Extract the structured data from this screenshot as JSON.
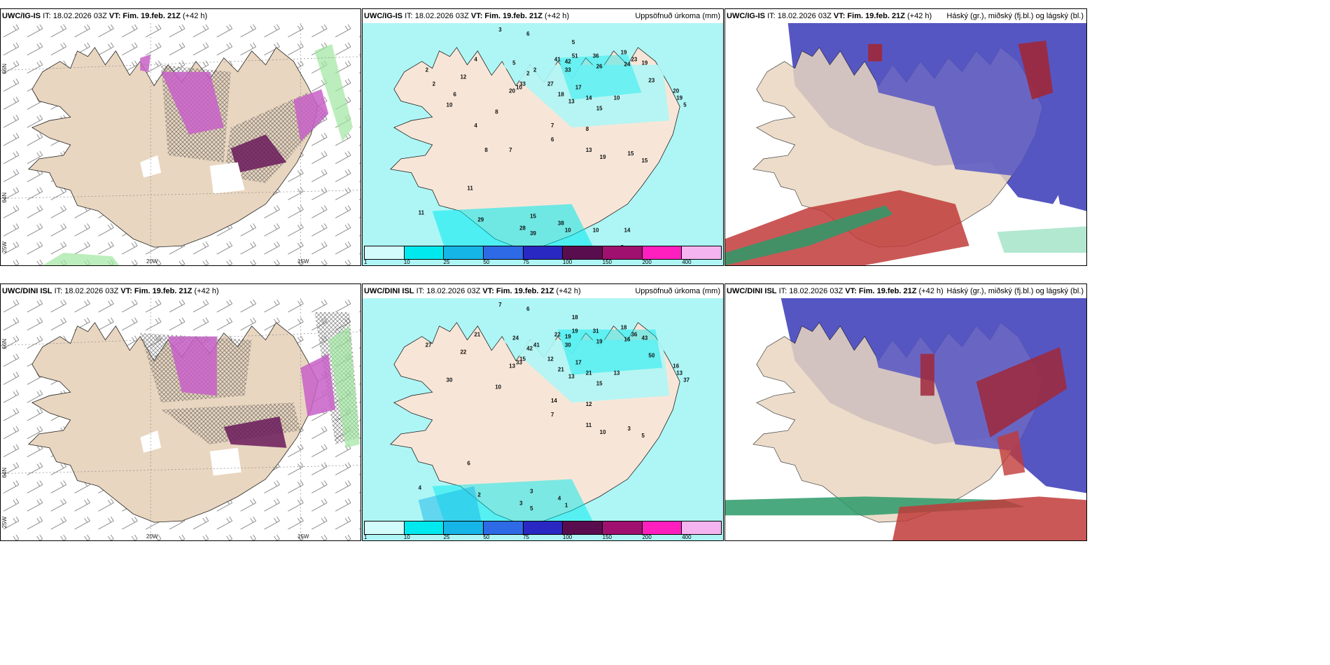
{
  "rows": [
    {
      "wind": {
        "model": "UWC/IG-IS",
        "it": "IT: 18.02.2026 03Z",
        "vt_label": "VT:",
        "vt": "Fim. 19.feb. 21Z",
        "lead": "(+42 h)"
      },
      "precip": {
        "model": "UWC/IG-IS",
        "it": "IT: 18.02.2026 03Z",
        "vt_label": "VT:",
        "vt": "Fim. 19.feb. 21Z",
        "lead": "(+42 h)",
        "right": "Uppsöfnuð úrkoma (mm)"
      },
      "cloud": {
        "model": "UWC/IG-IS",
        "it": "IT: 18.02.2026 03Z",
        "vt_label": "VT:",
        "vt": "Fim. 19.feb. 21Z",
        "lead": "(+42 h)",
        "right": "Háský (gr.), miðský (fj.bl.) og lágský (bl.)"
      },
      "precip_values": [
        "3",
        "6",
        "5",
        "4",
        "5",
        "12",
        "10",
        "2",
        "2",
        "2",
        "41",
        "42",
        "33",
        "51",
        "36",
        "26",
        "19",
        "24",
        "23",
        "19",
        "33",
        "20",
        "27",
        "18",
        "13",
        "17",
        "15",
        "14",
        "10",
        "23",
        "20",
        "19",
        "5",
        "10",
        "8",
        "7",
        "8",
        "13",
        "19",
        "15",
        "15",
        "6",
        "11",
        "11",
        "29",
        "15",
        "28",
        "39",
        "38",
        "10",
        "10",
        "14",
        "8",
        "6",
        "2",
        "6",
        "4",
        "8",
        "7"
      ]
    },
    {
      "wind": {
        "model": "UWC/DINI ISL",
        "it": "IT: 18.02.2026 03Z",
        "vt_label": "VT:",
        "vt": "Fim. 19.feb. 21Z",
        "lead": "(+42 h)"
      },
      "precip": {
        "model": "UWC/DINI ISL",
        "it": "IT: 18.02.2026 03Z",
        "vt_label": "VT:",
        "vt": "Fim. 19.feb. 21Z",
        "lead": "(+42 h)",
        "right": "Uppsöfnuð úrkoma (mm)"
      },
      "cloud": {
        "model": "UWC/DINI ISL",
        "it": "IT: 18.02.2026 03Z",
        "vt_label": "VT:",
        "vt": "Fim. 19.feb. 21Z",
        "lead": "(+42 h)",
        "right": "Háský (gr.), miðský (fj.bl.) og lágský (bl.)"
      },
      "precip_values": [
        "7",
        "6",
        "18",
        "21",
        "24",
        "22",
        "33",
        "42",
        "41",
        "27",
        "22",
        "19",
        "30",
        "19",
        "31",
        "19",
        "18",
        "16",
        "36",
        "43",
        "15",
        "13",
        "12",
        "21",
        "13",
        "17",
        "15",
        "21",
        "13",
        "50",
        "16",
        "13",
        "37",
        "30",
        "10",
        "14",
        "12",
        "11",
        "10",
        "3",
        "5",
        "7",
        "6",
        "4",
        "2",
        "3",
        "3",
        "5",
        "4",
        "1"
      ]
    }
  ],
  "axes": {
    "lat66": "66N",
    "lat64": "64N",
    "lon25": "25W",
    "lon20": "20W",
    "lon15": "15W"
  },
  "colorbar": {
    "ticks": [
      "1",
      "10",
      "25",
      "50",
      "75",
      "100",
      "150",
      "200",
      "400"
    ],
    "colors": [
      "#d4fbfb",
      "#00e9ee",
      "#16b5e8",
      "#2f6ae6",
      "#2a28c2",
      "#5a0d4e",
      "#a0106f",
      "#ff1fbf",
      "#f4b4ef"
    ]
  },
  "colors": {
    "land": "#e9d6c0",
    "sea_precip": "#aef6f6",
    "cloud_high": "#5656c3",
    "cloud_mid": "#c13b39",
    "cloud_low": "#2b9a6a"
  }
}
